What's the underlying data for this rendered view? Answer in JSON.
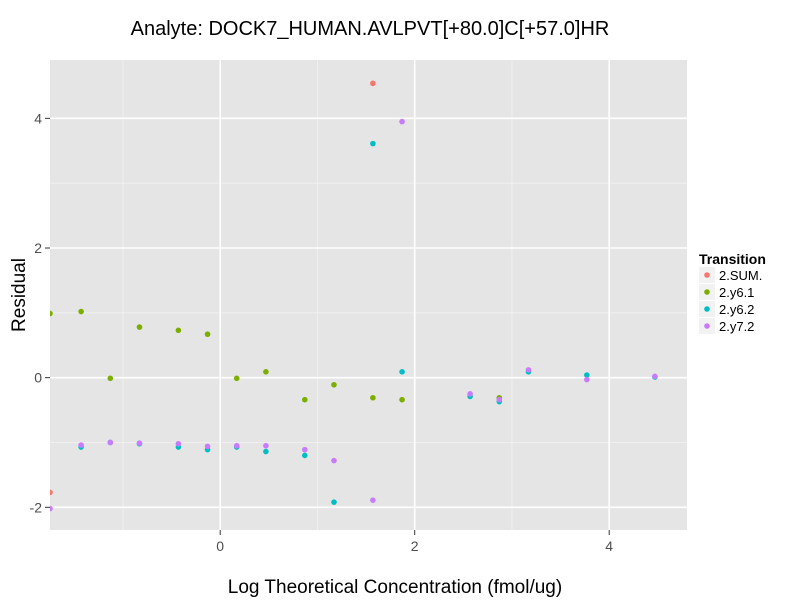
{
  "chart_data": {
    "type": "scatter",
    "title": "Analyte: DOCK7_HUMAN.AVLPVT[+80.0]C[+57.0]HR",
    "xlabel": "Log Theoretical Concentration (fmol/ug)",
    "ylabel": "Residual",
    "xlim": [
      -1.75,
      4.8
    ],
    "ylim": [
      -2.35,
      4.9
    ],
    "x_ticks": [
      0,
      2,
      4
    ],
    "y_ticks": [
      -2,
      0,
      2,
      4
    ],
    "x_tick_labels": [
      "0",
      "2",
      "4"
    ],
    "y_tick_labels": [
      "-2",
      "0",
      "2",
      "4"
    ],
    "grid": true,
    "legend_title": "Transition",
    "legend_position": "right",
    "series": [
      {
        "name": "2.SUM.",
        "color": "#F8766D",
        "points": [
          [
            -1.75,
            -1.77
          ],
          [
            1.57,
            4.54
          ]
        ]
      },
      {
        "name": "2.y6.1",
        "color": "#7CAE00",
        "points": [
          [
            -1.75,
            0.99
          ],
          [
            -1.43,
            1.02
          ],
          [
            -1.13,
            -0.01
          ],
          [
            -0.83,
            0.78
          ],
          [
            -0.43,
            0.73
          ],
          [
            -0.13,
            0.67
          ],
          [
            0.17,
            -0.01
          ],
          [
            0.47,
            0.09
          ],
          [
            0.87,
            -0.34
          ],
          [
            1.17,
            -0.11
          ],
          [
            1.57,
            -0.31
          ],
          [
            1.87,
            -0.34
          ],
          [
            2.87,
            -0.31
          ]
        ]
      },
      {
        "name": "2.y6.2",
        "color": "#00BFC4",
        "points": [
          [
            -1.43,
            -1.07
          ],
          [
            -1.13,
            -1.0
          ],
          [
            -0.83,
            -1.02
          ],
          [
            -0.43,
            -1.07
          ],
          [
            -0.13,
            -1.11
          ],
          [
            0.17,
            -1.07
          ],
          [
            0.47,
            -1.14
          ],
          [
            0.87,
            -1.2
          ],
          [
            1.17,
            -1.92
          ],
          [
            1.57,
            3.61
          ],
          [
            1.87,
            0.09
          ],
          [
            2.57,
            -0.29
          ],
          [
            2.87,
            -0.37
          ],
          [
            3.17,
            0.09
          ],
          [
            3.77,
            0.04
          ],
          [
            4.47,
            0.01
          ]
        ]
      },
      {
        "name": "2.y7.2",
        "color": "#C77CFF",
        "points": [
          [
            -1.75,
            -2.02
          ],
          [
            -1.43,
            -1.04
          ],
          [
            -1.13,
            -1.0
          ],
          [
            -0.83,
            -1.01
          ],
          [
            -0.43,
            -1.02
          ],
          [
            -0.13,
            -1.06
          ],
          [
            0.17,
            -1.05
          ],
          [
            0.47,
            -1.05
          ],
          [
            0.87,
            -1.11
          ],
          [
            1.17,
            -1.28
          ],
          [
            1.57,
            -1.89
          ],
          [
            1.87,
            3.95
          ],
          [
            2.57,
            -0.25
          ],
          [
            2.87,
            -0.34
          ],
          [
            3.17,
            0.12
          ],
          [
            3.77,
            -0.03
          ],
          [
            4.47,
            0.02
          ]
        ]
      }
    ]
  }
}
